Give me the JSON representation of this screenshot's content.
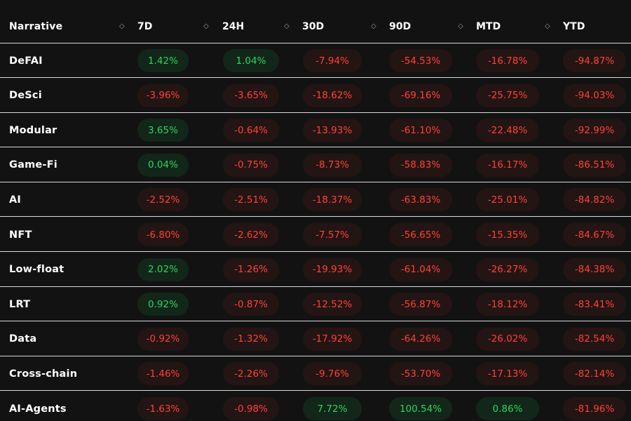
{
  "header": {
    "narrative": "Narrative",
    "cols": [
      "7D",
      "24H",
      "30D",
      "90D",
      "MTD",
      "YTD"
    ],
    "sort_glyph": "◇"
  },
  "colors": {
    "background": "#121212",
    "positive_text": "#2fd45d",
    "positive_bg": "#12261a",
    "negative_text": "#ff4136",
    "negative_bg": "#231514",
    "divider": "#d9d9d9"
  },
  "rows": [
    {
      "name": "DeFAI",
      "values": [
        "1.42%",
        "1.04%",
        "-7.94%",
        "-54.53%",
        "-16.78%",
        "-94.87%"
      ]
    },
    {
      "name": "DeSci",
      "values": [
        "-3.96%",
        "-3.65%",
        "-18.62%",
        "-69.16%",
        "-25.75%",
        "-94.03%"
      ]
    },
    {
      "name": "Modular",
      "values": [
        "3.65%",
        "-0.64%",
        "-13.93%",
        "-61.10%",
        "-22.48%",
        "-92.99%"
      ]
    },
    {
      "name": "Game-Fi",
      "values": [
        "0.04%",
        "-0.75%",
        "-8.73%",
        "-58.83%",
        "-16.17%",
        "-86.51%"
      ]
    },
    {
      "name": "AI",
      "values": [
        "-2.52%",
        "-2.51%",
        "-18.37%",
        "-63.83%",
        "-25.01%",
        "-84.82%"
      ]
    },
    {
      "name": "NFT",
      "values": [
        "-6.80%",
        "-2.62%",
        "-7.57%",
        "-56.65%",
        "-15.35%",
        "-84.67%"
      ]
    },
    {
      "name": "Low-float",
      "values": [
        "2.02%",
        "-1.26%",
        "-19.93%",
        "-61.04%",
        "-26.27%",
        "-84.38%"
      ]
    },
    {
      "name": "LRT",
      "values": [
        "0.92%",
        "-0.87%",
        "-12.52%",
        "-56.87%",
        "-18.12%",
        "-83.41%"
      ]
    },
    {
      "name": "Data",
      "values": [
        "-0.92%",
        "-1.32%",
        "-17.92%",
        "-64.26%",
        "-26.02%",
        "-82.54%"
      ]
    },
    {
      "name": "Cross-chain",
      "values": [
        "-1.46%",
        "-2.26%",
        "-9.76%",
        "-53.70%",
        "-17.13%",
        "-82.14%"
      ]
    },
    {
      "name": "AI-Agents",
      "values": [
        "-1.63%",
        "-0.98%",
        "7.72%",
        "100.54%",
        "0.86%",
        "-81.96%"
      ]
    }
  ]
}
